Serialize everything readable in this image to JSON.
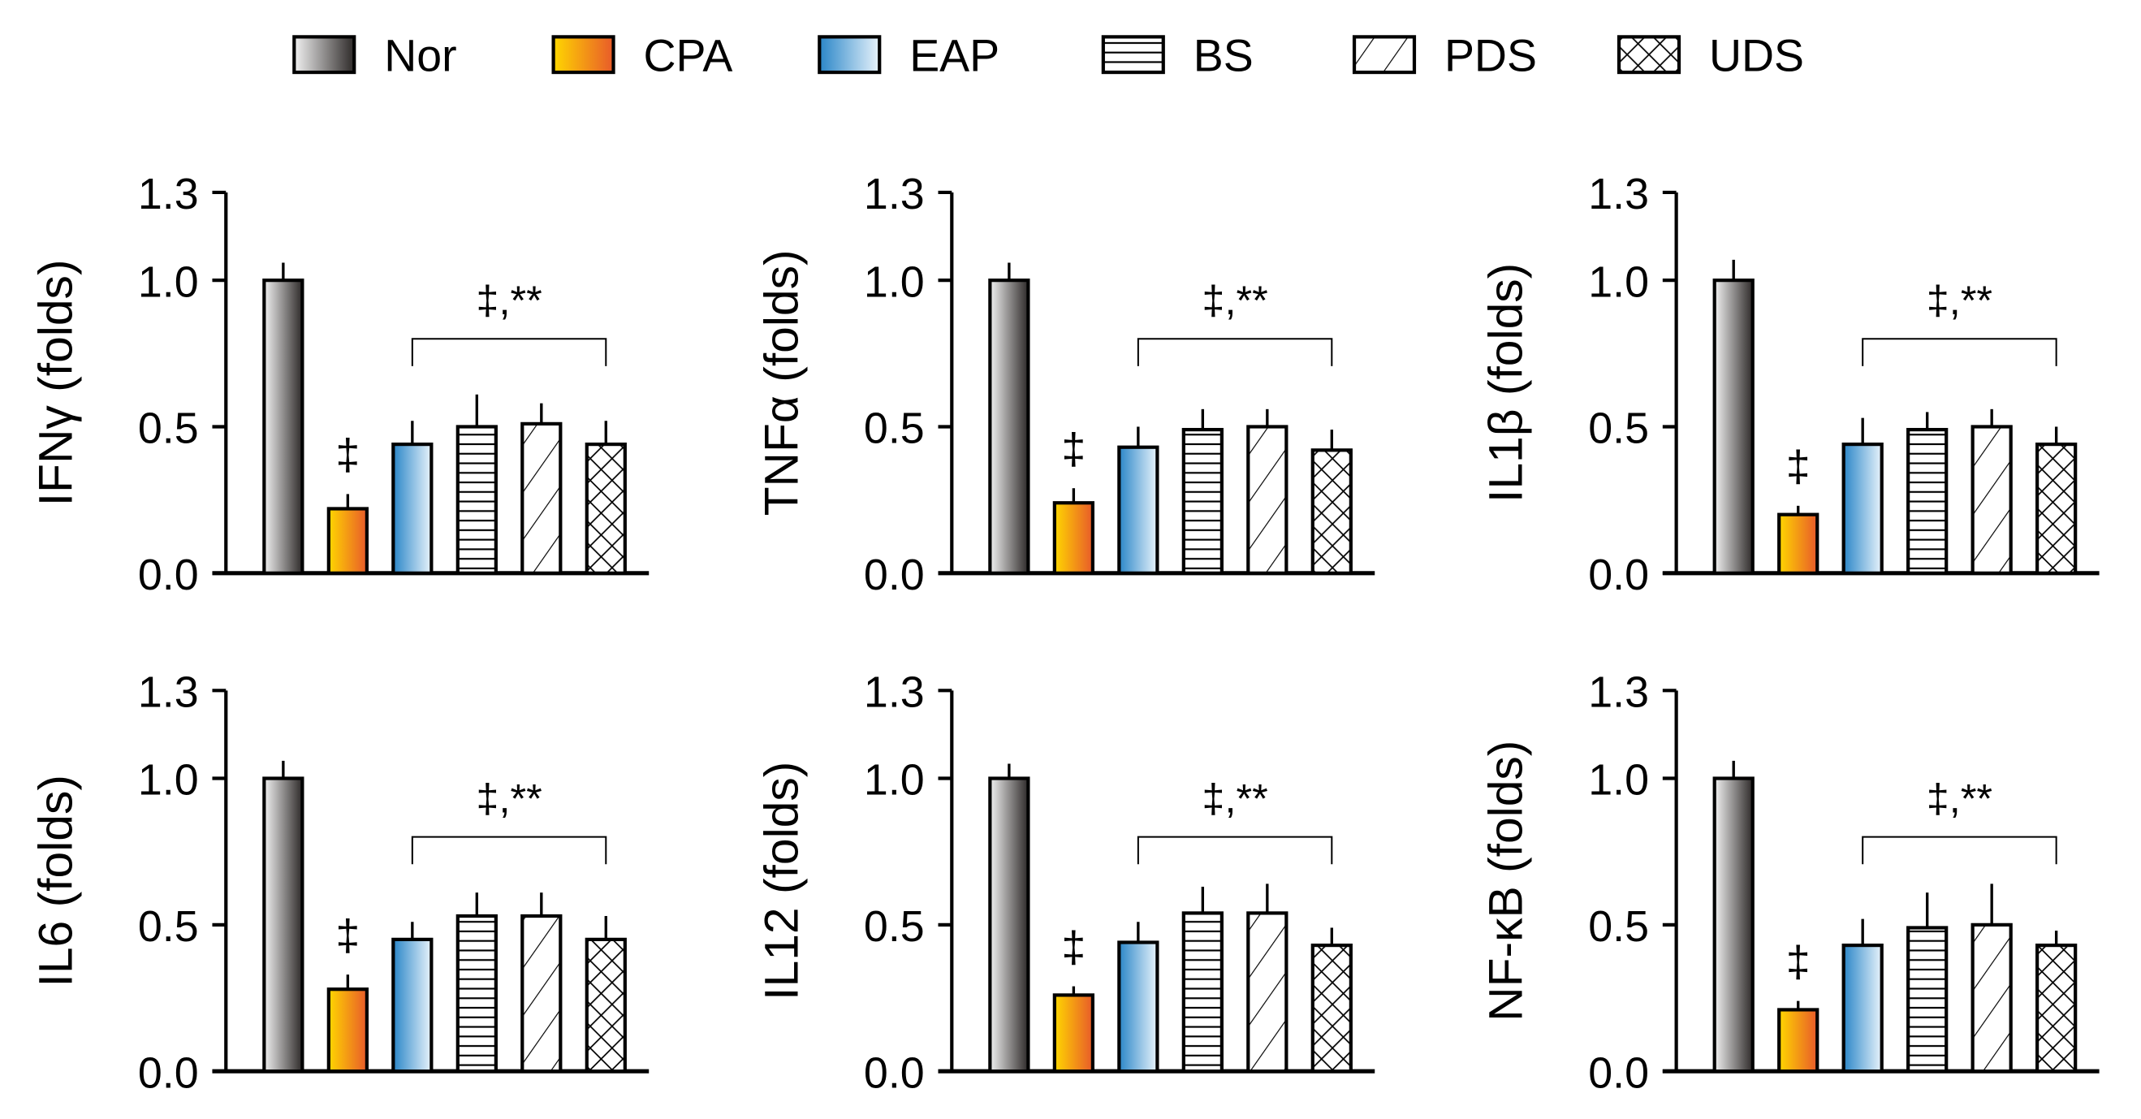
{
  "legend": [
    {
      "label": "Nor",
      "fill": "grad-nor"
    },
    {
      "label": "CPA",
      "fill": "grad-cpa"
    },
    {
      "label": "EAP",
      "fill": "grad-eap"
    },
    {
      "label": "BS",
      "fill": "pat-bs"
    },
    {
      "label": "PDS",
      "fill": "pat-pds"
    },
    {
      "label": "UDS",
      "fill": "pat-uds"
    }
  ],
  "colors": {
    "nor_light": "#f2f2f2",
    "nor_dark": "#2e2a29",
    "cpa_start": "#ffd700",
    "cpa_end": "#e85a2a",
    "eap_start": "#2a86c8",
    "eap_end": "#e8f3fb"
  },
  "chart_data": [
    {
      "type": "bar",
      "ylabel": "IFNγ (folds)",
      "categories": [
        "Nor",
        "CPA",
        "EAP",
        "BS",
        "PDS",
        "UDS"
      ],
      "values": [
        1.0,
        0.22,
        0.44,
        0.5,
        0.51,
        0.44
      ],
      "errors": [
        0.06,
        0.05,
        0.08,
        0.11,
        0.07,
        0.08
      ],
      "yticks": [
        "0.0",
        "0.5",
        "1.0",
        "1.3"
      ],
      "ylim": [
        0,
        1.3
      ],
      "cpa_mark": "‡",
      "group_mark": "‡,**"
    },
    {
      "type": "bar",
      "ylabel": "TNFα (folds)",
      "categories": [
        "Nor",
        "CPA",
        "EAP",
        "BS",
        "PDS",
        "UDS"
      ],
      "values": [
        1.0,
        0.24,
        0.43,
        0.49,
        0.5,
        0.42
      ],
      "errors": [
        0.06,
        0.05,
        0.07,
        0.07,
        0.06,
        0.07
      ],
      "yticks": [
        "0.0",
        "0.5",
        "1.0",
        "1.3"
      ],
      "ylim": [
        0,
        1.3
      ],
      "cpa_mark": "‡",
      "group_mark": "‡,**"
    },
    {
      "type": "bar",
      "ylabel": "IL1β (folds)",
      "categories": [
        "Nor",
        "CPA",
        "EAP",
        "BS",
        "PDS",
        "UDS"
      ],
      "values": [
        1.0,
        0.2,
        0.44,
        0.49,
        0.5,
        0.44
      ],
      "errors": [
        0.07,
        0.03,
        0.09,
        0.06,
        0.06,
        0.06
      ],
      "yticks": [
        "0.0",
        "0.5",
        "1.0",
        "1.3"
      ],
      "ylim": [
        0,
        1.3
      ],
      "cpa_mark": "‡",
      "group_mark": "‡,**"
    },
    {
      "type": "bar",
      "ylabel": "IL6 (folds)",
      "categories": [
        "Nor",
        "CPA",
        "EAP",
        "BS",
        "PDS",
        "UDS"
      ],
      "values": [
        1.0,
        0.28,
        0.45,
        0.53,
        0.53,
        0.45
      ],
      "errors": [
        0.06,
        0.05,
        0.06,
        0.08,
        0.08,
        0.08
      ],
      "yticks": [
        "0.0",
        "0.5",
        "1.0",
        "1.3"
      ],
      "ylim": [
        0,
        1.3
      ],
      "cpa_mark": "‡",
      "group_mark": "‡,**"
    },
    {
      "type": "bar",
      "ylabel": "IL12 (folds)",
      "categories": [
        "Nor",
        "CPA",
        "EAP",
        "BS",
        "PDS",
        "UDS"
      ],
      "values": [
        1.0,
        0.26,
        0.44,
        0.54,
        0.54,
        0.43
      ],
      "errors": [
        0.05,
        0.03,
        0.07,
        0.09,
        0.1,
        0.06
      ],
      "yticks": [
        "0.0",
        "0.5",
        "1.0",
        "1.3"
      ],
      "ylim": [
        0,
        1.3
      ],
      "cpa_mark": "‡",
      "group_mark": "‡,**"
    },
    {
      "type": "bar",
      "ylabel": "NF-κB (folds)",
      "categories": [
        "Nor",
        "CPA",
        "EAP",
        "BS",
        "PDS",
        "UDS"
      ],
      "values": [
        1.0,
        0.21,
        0.43,
        0.49,
        0.5,
        0.43
      ],
      "errors": [
        0.06,
        0.03,
        0.09,
        0.12,
        0.14,
        0.05
      ],
      "yticks": [
        "0.0",
        "0.5",
        "1.0",
        "1.3"
      ],
      "ylim": [
        0,
        1.3
      ],
      "cpa_mark": "‡",
      "group_mark": "‡,**"
    }
  ]
}
